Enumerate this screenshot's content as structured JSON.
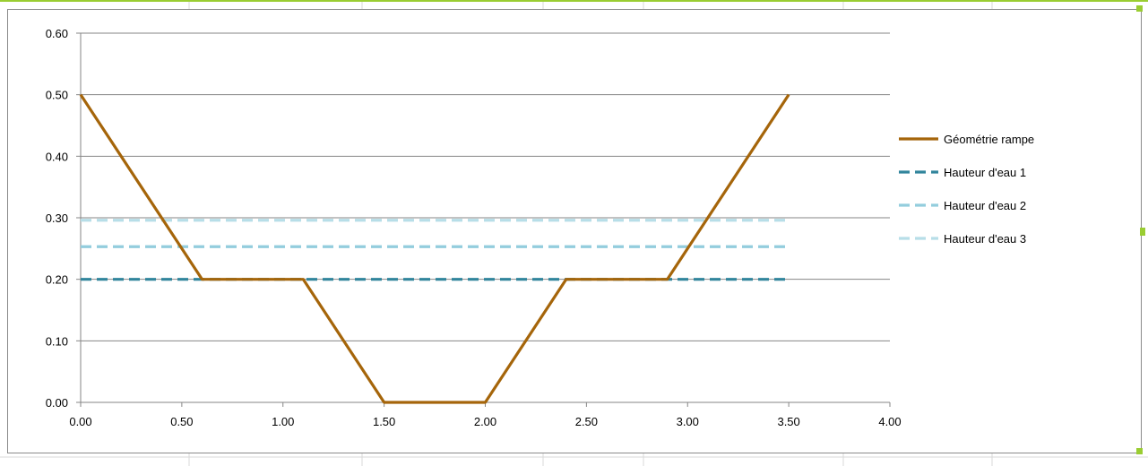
{
  "chart_data": {
    "type": "line",
    "x_range": [
      0,
      4
    ],
    "y_range": [
      0,
      0.6
    ],
    "x_ticks": [
      "0.00",
      "0.50",
      "1.00",
      "1.50",
      "2.00",
      "2.50",
      "3.00",
      "3.50",
      "4.00"
    ],
    "y_ticks": [
      "0.00",
      "0.10",
      "0.20",
      "0.30",
      "0.40",
      "0.50",
      "0.60"
    ],
    "grid": "horizontal",
    "legend_position": "right",
    "series": [
      {
        "name": "Géométrie rampe",
        "color": "#a5650a",
        "style": "solid",
        "points": [
          [
            0.0,
            0.5
          ],
          [
            0.6,
            0.2
          ],
          [
            1.1,
            0.2
          ],
          [
            1.5,
            0.0
          ],
          [
            2.0,
            0.0
          ],
          [
            2.4,
            0.2
          ],
          [
            2.9,
            0.2
          ],
          [
            3.5,
            0.5
          ]
        ]
      },
      {
        "name": "Hauteur d'eau 1",
        "color": "#31859c",
        "style": "dashed",
        "points": [
          [
            0.0,
            0.2
          ],
          [
            3.5,
            0.2
          ]
        ]
      },
      {
        "name": "Hauteur d'eau 2",
        "color": "#93cddd",
        "style": "dashed",
        "points": [
          [
            0.0,
            0.253
          ],
          [
            3.5,
            0.253
          ]
        ]
      },
      {
        "name": "Hauteur d'eau 3",
        "color": "#b7dee8",
        "style": "dashed",
        "points": [
          [
            0.0,
            0.296
          ],
          [
            3.5,
            0.296
          ]
        ]
      }
    ]
  }
}
